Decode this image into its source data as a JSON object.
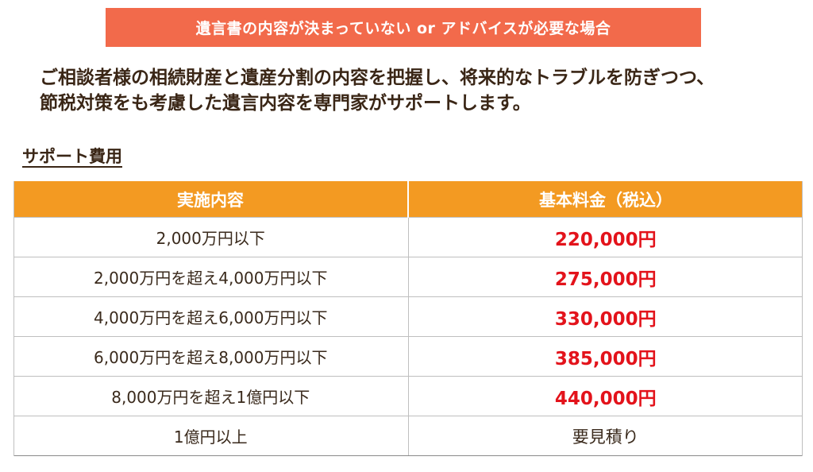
{
  "banner": {
    "text": "遺言書の内容が決まっていない or アドバイスが必要な場合"
  },
  "intro": {
    "line1": "ご相談者様の相続財産と遺産分割の内容を把握し、将来的なトラブルを防ぎつつ、",
    "line2": "節税対策をも考慮した遺言内容を専門家がサポートします。"
  },
  "section": {
    "title": "サポート費用"
  },
  "table": {
    "headers": [
      "実施内容",
      "基本料金（税込）"
    ],
    "rows": [
      {
        "range": "2,000万円以下",
        "price": "220,000円"
      },
      {
        "range": "2,000万円を超え4,000万円以下",
        "price": "275,000円"
      },
      {
        "range": "4,000万円を超え6,000万円以下",
        "price": "330,000円"
      },
      {
        "range": "6,000万円を超え8,000万円以下",
        "price": "385,000円"
      },
      {
        "range": "8,000万円を超え1億円以下",
        "price": "440,000円"
      },
      {
        "range": "1億円以上",
        "price": "要見積り"
      }
    ]
  },
  "colors": {
    "banner_bg": "#f26a4b",
    "header_bg": "#f39a22",
    "price_text": "#e3131b",
    "body_text": "#3a2a1c"
  }
}
